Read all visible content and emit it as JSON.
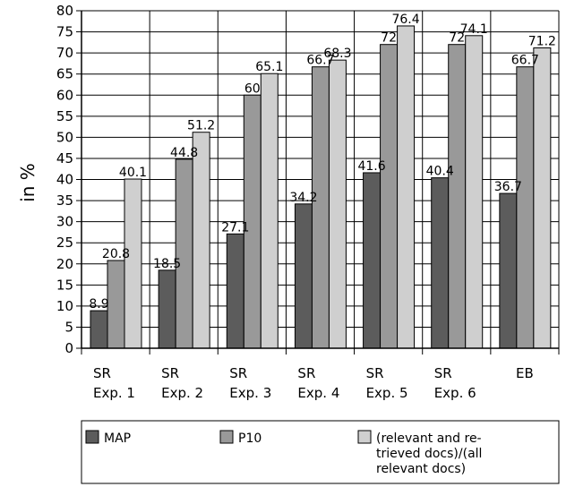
{
  "chart_data": {
    "type": "bar",
    "ylabel": "in %",
    "xlabel": "",
    "ylim": [
      0,
      80
    ],
    "yticks": [
      0,
      5,
      10,
      15,
      20,
      25,
      30,
      35,
      40,
      45,
      50,
      55,
      60,
      65,
      70,
      75,
      80
    ],
    "grid": true,
    "legend_position": "bottom",
    "categories": [
      [
        "SR",
        "Exp. 1"
      ],
      [
        "SR",
        "Exp. 2"
      ],
      [
        "SR",
        "Exp. 3"
      ],
      [
        "SR",
        "Exp. 4"
      ],
      [
        "SR",
        "Exp. 5"
      ],
      [
        "SR",
        "Exp. 6"
      ],
      [
        "EB"
      ]
    ],
    "series": [
      {
        "name": "MAP",
        "color": "#5c5c5c",
        "values": [
          8.9,
          18.5,
          27.1,
          34.2,
          41.6,
          40.4,
          36.7
        ],
        "labels": [
          "8.9",
          "18.5",
          "27.1",
          "34.2",
          "41.6",
          "40.4",
          "36.7"
        ]
      },
      {
        "name": "P10",
        "color": "#999999",
        "values": [
          20.8,
          44.8,
          60,
          66.7,
          72,
          72,
          66.7
        ],
        "labels": [
          "20.8",
          "44.8",
          "60",
          "66.7",
          "72",
          "72",
          "66.7"
        ]
      },
      {
        "name": "(relevant and retrieved docs)/(all relevant docs)",
        "color": "#cfcfcf",
        "values": [
          40.1,
          51.2,
          65.1,
          68.3,
          76.4,
          74.1,
          71.2
        ],
        "labels": [
          "40.1",
          "51.2",
          "65.1",
          "68.3",
          "76.4",
          "74.1",
          "71.2"
        ]
      }
    ],
    "legend_lines": [
      [
        "MAP"
      ],
      [
        "P10"
      ],
      [
        "(relevant and re-",
        "trieved docs)/(all",
        "relevant docs)"
      ]
    ]
  }
}
